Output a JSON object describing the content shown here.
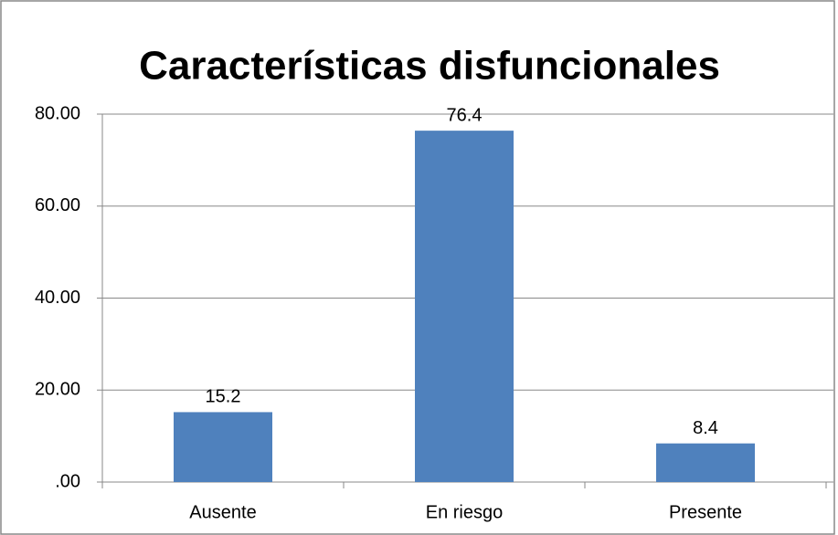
{
  "chart_data": {
    "type": "bar",
    "title": "Características disfuncionales",
    "categories": [
      "Ausente",
      "En riesgo",
      "Presente"
    ],
    "values": [
      15.2,
      76.4,
      8.4
    ],
    "color": "#4f81bd",
    "ylim": [
      0,
      80
    ],
    "yticks": [
      {
        "value": 0,
        "label": ".00"
      },
      {
        "value": 20,
        "label": "20.00"
      },
      {
        "value": 40,
        "label": "40.00"
      },
      {
        "value": 60,
        "label": "60.00"
      },
      {
        "value": 80,
        "label": "80.00"
      }
    ],
    "grid": true
  }
}
